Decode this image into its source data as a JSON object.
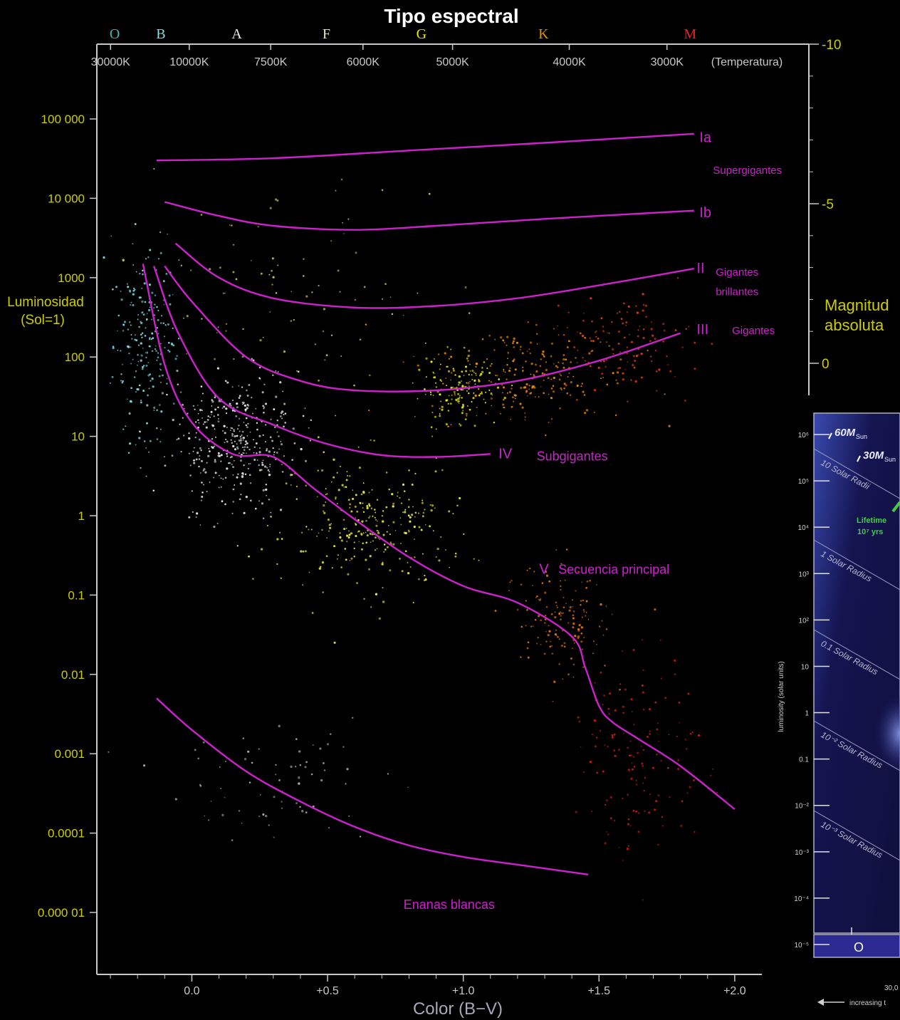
{
  "colors": {
    "background": "#000000",
    "axis": "#c8c8c8",
    "axis_text": "#c8c8c8",
    "yellow_text": "#cccc00",
    "curve": "#cc22cc",
    "sp_O": "#3ab8b0",
    "sp_B": "#8ad8e0",
    "sp_A": "#e8e8e8",
    "sp_F": "#e8e8a0",
    "sp_G": "#e8e800",
    "sp_K": "#e89000",
    "sp_M": "#e82020"
  },
  "chart_data": {
    "type": "scatter",
    "title": "Tipo espectral",
    "xlabel": "Color (B−V)",
    "ylabel": "Luminosidad (Sol=1)",
    "y2label": "Magnitud absoluta",
    "temperature_axis_label": "(Temperatura)",
    "x_scale": "linear",
    "y_scale": "log",
    "xlim": [
      -0.35,
      2.1
    ],
    "ylim": [
      1e-06,
      1000000
    ],
    "x_ticks": [
      {
        "value": 0.0,
        "label": "0.0"
      },
      {
        "value": 0.5,
        "label": "+0.5"
      },
      {
        "value": 1.0,
        "label": "+1.0"
      },
      {
        "value": 1.5,
        "label": "+1.5"
      },
      {
        "value": 2.0,
        "label": "+2.0"
      }
    ],
    "y_ticks": [
      {
        "value": 100000,
        "label": "100 000"
      },
      {
        "value": 10000,
        "label": "10 000"
      },
      {
        "value": 1000,
        "label": "1000"
      },
      {
        "value": 100,
        "label": "100"
      },
      {
        "value": 10,
        "label": "10"
      },
      {
        "value": 1,
        "label": "1"
      },
      {
        "value": 0.1,
        "label": "0.1"
      },
      {
        "value": 0.01,
        "label": "0.01"
      },
      {
        "value": 0.001,
        "label": "0.001"
      },
      {
        "value": 0.0001,
        "label": "0.0001"
      },
      {
        "value": 1e-05,
        "label": "0.000 01"
      }
    ],
    "magnitude_ticks": [
      {
        "value": -10,
        "label": "-10"
      },
      {
        "value": -5,
        "label": "-5"
      },
      {
        "value": 0,
        "label": "0"
      }
    ],
    "spectral_types": [
      {
        "label": "O",
        "x": -0.3
      },
      {
        "label": "B",
        "x": -0.13
      },
      {
        "label": "A",
        "x": 0.15
      },
      {
        "label": "F",
        "x": 0.48
      },
      {
        "label": "G",
        "x": 0.83
      },
      {
        "label": "K",
        "x": 1.28
      },
      {
        "label": "M",
        "x": 1.82
      }
    ],
    "temperature_ticks": [
      {
        "label": "30000K",
        "x": -0.31
      },
      {
        "label": "10000K",
        "x": -0.02
      },
      {
        "label": "7500K",
        "x": 0.28
      },
      {
        "label": "6000K",
        "x": 0.62
      },
      {
        "label": "5000K",
        "x": 0.95
      },
      {
        "label": "4000K",
        "x": 1.38
      },
      {
        "label": "3000K",
        "x": 1.74
      }
    ],
    "series": [
      {
        "name": "Ia",
        "x": [
          -0.13,
          0.3,
          0.8,
          1.3,
          1.85
        ],
        "y": [
          30000,
          32000,
          40000,
          50000,
          65000
        ]
      },
      {
        "name": "Ib",
        "x": [
          -0.1,
          0.1,
          0.3,
          0.6,
          0.9,
          1.3,
          1.85
        ],
        "y": [
          9000,
          6000,
          4500,
          4000,
          4500,
          5500,
          7000
        ]
      },
      {
        "name": "II",
        "x": [
          -0.06,
          0.1,
          0.3,
          0.6,
          0.9,
          1.2,
          1.5,
          1.85
        ],
        "y": [
          2700,
          1000,
          550,
          420,
          440,
          550,
          800,
          1300
        ]
      },
      {
        "name": "III",
        "x": [
          -0.1,
          0.0,
          0.2,
          0.4,
          0.6,
          0.9,
          1.2,
          1.5,
          1.8
        ],
        "y": [
          1400,
          500,
          100,
          50,
          38,
          38,
          50,
          90,
          200
        ]
      },
      {
        "name": "IV",
        "x": [
          -0.14,
          -0.05,
          0.1,
          0.3,
          0.5,
          0.7,
          0.9,
          1.1
        ],
        "y": [
          1400,
          200,
          30,
          14,
          8,
          5.8,
          5.5,
          6
        ]
      },
      {
        "name": "V",
        "x": [
          -0.18,
          -0.1,
          0.0,
          0.15,
          0.3,
          0.45,
          0.6,
          0.8,
          1.0,
          1.2,
          1.4,
          1.45,
          1.5,
          1.55,
          1.65,
          1.8,
          2.0
        ],
        "y": [
          1500,
          80,
          15,
          6,
          5.5,
          2.2,
          0.9,
          0.3,
          0.13,
          0.08,
          0.03,
          0.012,
          0.004,
          0.0025,
          0.0015,
          0.0007,
          0.0002
        ]
      },
      {
        "name": "Enanas blancas",
        "x": [
          -0.13,
          0.0,
          0.2,
          0.4,
          0.6,
          0.8,
          1.0,
          1.2,
          1.46
        ],
        "y": [
          0.005,
          0.002,
          0.0006,
          0.00025,
          0.00012,
          7e-05,
          5e-05,
          4e-05,
          3e-05
        ]
      }
    ],
    "annotations": [
      {
        "text": "Ia",
        "x": 1.87,
        "y": 58000
      },
      {
        "text": "Supergigantes",
        "x": 1.92,
        "y": 23000
      },
      {
        "text": "Ib",
        "x": 1.87,
        "y": 6500
      },
      {
        "text": "II",
        "x": 1.86,
        "y": 1300
      },
      {
        "text": "Gigantes",
        "x": 1.93,
        "y": 1200
      },
      {
        "text": "brillantes",
        "x": 1.93,
        "y": 680
      },
      {
        "text": "III",
        "x": 1.86,
        "y": 220
      },
      {
        "text": "Gigantes",
        "x": 1.99,
        "y": 220
      },
      {
        "text": "IV",
        "x": 1.13,
        "y": 6
      },
      {
        "text": "Subgigantes",
        "x": 1.27,
        "y": 5.6
      },
      {
        "text": "V",
        "x": 1.28,
        "y": 0.21
      },
      {
        "text": "Secuencia principal",
        "x": 1.35,
        "y": 0.21
      },
      {
        "text": "Enanas blancas",
        "x": 0.78,
        "y": 1.25e-05
      }
    ],
    "star_clouds": [
      {
        "color": "#7fd6dc",
        "cx": -0.17,
        "cy": 150,
        "sx": 0.06,
        "sy_dex": 0.6,
        "n": 220
      },
      {
        "color": "#e8e8e8",
        "cx": 0.15,
        "cy": 8,
        "sx": 0.12,
        "sy_dex": 0.45,
        "n": 380
      },
      {
        "color": "#eeee40",
        "cx": 0.65,
        "cy": 0.8,
        "sx": 0.15,
        "sy_dex": 0.4,
        "n": 280
      },
      {
        "color": "#eeee20",
        "cx": 0.98,
        "cy": 40,
        "sx": 0.08,
        "sy_dex": 0.2,
        "n": 160
      },
      {
        "color": "#f08a10",
        "cx": 1.25,
        "cy": 60,
        "sx": 0.18,
        "sy_dex": 0.3,
        "n": 220
      },
      {
        "color": "#e04010",
        "cx": 1.6,
        "cy": 150,
        "sx": 0.12,
        "sy_dex": 0.3,
        "n": 120
      },
      {
        "color": "#e07010",
        "cx": 1.35,
        "cy": 0.05,
        "sx": 0.1,
        "sy_dex": 0.35,
        "n": 150
      },
      {
        "color": "#d02010",
        "cx": 1.65,
        "cy": 0.001,
        "sx": 0.12,
        "sy_dex": 0.6,
        "n": 140
      },
      {
        "color": "#b0b0b0",
        "cx": 0.3,
        "cy": 0.0004,
        "sx": 0.2,
        "sy_dex": 0.35,
        "n": 70
      },
      {
        "color": "#c0c060",
        "cx": 0.3,
        "cy": 500,
        "sx": 0.3,
        "sy_dex": 0.8,
        "n": 90
      }
    ]
  },
  "inset": {
    "y_ticks": [
      "10⁶",
      "10⁵",
      "10⁴",
      "10³",
      "10²",
      "10",
      "1",
      "0.1",
      "10⁻²",
      "10⁻³",
      "10⁻⁴",
      "10⁻⁵"
    ],
    "ylabel": "luminosity (solar units)",
    "mass_labels": [
      "60M",
      "30M"
    ],
    "mass_sub": "Sun",
    "radius_labels": [
      "10 Solar Radii",
      "1 Solar Radius",
      "0.1 Solar Radius",
      "10⁻² Solar Radius",
      "10⁻³ Solar Radius"
    ],
    "lifetime_label": "Lifetime",
    "lifetime_value": "10⁷ yrs",
    "spectral_label": "O",
    "bottom_number": "30,0",
    "bottom_text": "increasing t",
    "colors": {
      "bg": "#1c1c6e",
      "glow": "#6a78c8",
      "bar": "#2a2a90",
      "green": "#44cc44",
      "line": "#9a9ac0"
    }
  }
}
